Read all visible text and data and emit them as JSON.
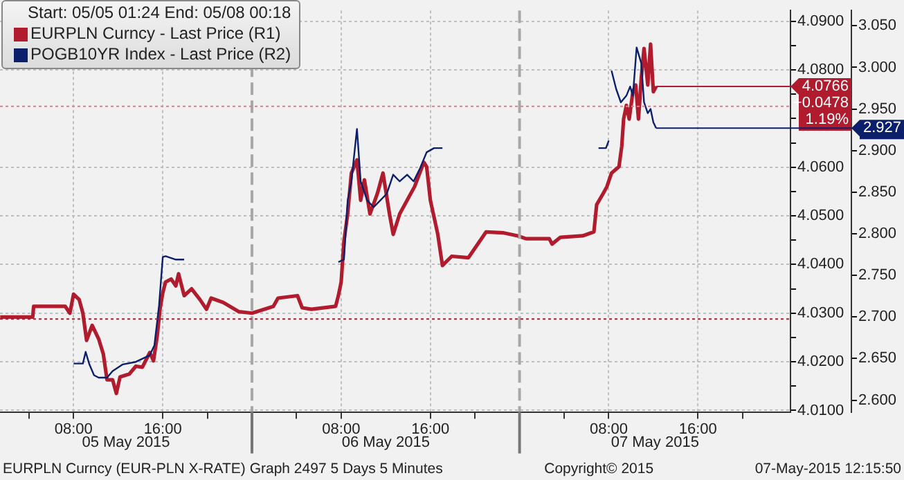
{
  "chart_data": {
    "type": "line",
    "legend_title": "Start: 05/05 01:24 End: 05/08 00:18",
    "legend": "top left",
    "grid": true,
    "marker": "none",
    "line_style": "solid",
    "series": [
      {
        "name": "EURPLN Curncy - Last Price (R1)",
        "color": "#b01c2e",
        "x": [
          "2015-05-05T01:25",
          "2015-05-05T04:20",
          "2015-05-05T04:25",
          "2015-05-05T07:15",
          "2015-05-05T07:40",
          "2015-05-05T08:00",
          "2015-05-05T08:30",
          "2015-05-05T08:50",
          "2015-05-05T09:10",
          "2015-05-05T09:40",
          "2015-05-05T10:15",
          "2015-05-05T10:40",
          "2015-05-05T11:00",
          "2015-05-05T11:30",
          "2015-05-05T11:50",
          "2015-05-05T12:10",
          "2015-05-05T13:00",
          "2015-05-05T13:35",
          "2015-05-05T14:10",
          "2015-05-05T14:50",
          "2015-05-05T15:10",
          "2015-05-05T15:30",
          "2015-05-05T15:45",
          "2015-05-05T16:00",
          "2015-05-05T16:15",
          "2015-05-05T16:45",
          "2015-05-05T17:10",
          "2015-05-05T17:25",
          "2015-05-05T17:55",
          "2015-05-05T18:35",
          "2015-05-05T19:20",
          "2015-05-05T19:55",
          "2015-05-05T20:20",
          "2015-05-05T21:25",
          "2015-05-05T22:50",
          "2015-05-06T00:00",
          "2015-05-06T01:05",
          "2015-05-06T01:55",
          "2015-05-06T02:20",
          "2015-05-06T04:05",
          "2015-05-06T04:30",
          "2015-05-06T05:20",
          "2015-05-06T07:30",
          "2015-05-06T07:45",
          "2015-05-06T08:00",
          "2015-05-06T08:15",
          "2015-05-06T08:35",
          "2015-05-06T08:55",
          "2015-05-06T09:25",
          "2015-05-06T09:45",
          "2015-05-06T10:05",
          "2015-05-06T10:35",
          "2015-05-06T11:15",
          "2015-05-06T11:45",
          "2015-05-06T12:20",
          "2015-05-06T12:40",
          "2015-05-06T13:15",
          "2015-05-06T13:55",
          "2015-05-06T14:35",
          "2015-05-06T15:25",
          "2015-05-06T15:40",
          "2015-05-06T16:00",
          "2015-05-06T16:40",
          "2015-05-06T17:05",
          "2015-05-06T17:55",
          "2015-05-06T19:25",
          "2015-05-06T21:00",
          "2015-05-06T22:35",
          "2015-05-06T23:50",
          "2015-05-07T00:35",
          "2015-05-07T02:40",
          "2015-05-07T02:55",
          "2015-05-07T03:40",
          "2015-05-07T05:40",
          "2015-05-07T06:40",
          "2015-05-07T06:55",
          "2015-05-07T07:30",
          "2015-05-07T07:50",
          "2015-05-07T08:15",
          "2015-05-07T08:55",
          "2015-05-07T09:10",
          "2015-05-07T09:20",
          "2015-05-07T09:35",
          "2015-05-07T09:50",
          "2015-05-07T10:10",
          "2015-05-07T10:25",
          "2015-05-07T10:40",
          "2015-05-07T10:55",
          "2015-05-07T11:10",
          "2015-05-07T11:30",
          "2015-05-07T11:45",
          "2015-05-07T12:00",
          "2015-05-07T12:15"
        ],
        "values": [
          4.0292,
          4.0292,
          4.0314,
          4.0314,
          4.03,
          4.0339,
          4.0328,
          4.03,
          4.0244,
          4.0275,
          4.0247,
          4.0216,
          4.0163,
          4.0163,
          4.0135,
          4.0169,
          4.0175,
          4.0191,
          4.0189,
          4.0219,
          4.0202,
          4.0253,
          4.0308,
          4.0342,
          4.0364,
          4.037,
          4.0356,
          4.0381,
          4.0336,
          4.035,
          4.0328,
          4.0308,
          4.0331,
          4.0322,
          4.0303,
          4.03,
          4.0308,
          4.0314,
          4.0331,
          4.0336,
          4.0311,
          4.0308,
          4.0314,
          4.0336,
          4.0364,
          4.0448,
          4.0504,
          4.0588,
          4.0615,
          4.0532,
          4.0574,
          4.0504,
          4.0546,
          4.0588,
          4.0504,
          4.0462,
          4.0504,
          4.0532,
          4.056,
          4.061,
          4.0601,
          4.0532,
          4.0462,
          4.0398,
          4.0417,
          4.0414,
          4.0467,
          4.0465,
          4.0459,
          4.0453,
          4.0453,
          4.0442,
          4.0456,
          4.0459,
          4.0467,
          4.0523,
          4.0546,
          4.056,
          4.0588,
          4.0601,
          4.0643,
          4.0699,
          4.0727,
          4.0699,
          4.0755,
          4.0769,
          4.0699,
          4.0783,
          4.0844,
          4.0769,
          4.0853,
          4.0755,
          4.0766
        ]
      },
      {
        "name": "POGB10YR Index - Last Price (R2)",
        "color": "#0b1f6b",
        "axis": "y2",
        "x": [
          "2015-05-05T08:00",
          "2015-05-05T08:50",
          "2015-05-05T09:05",
          "2015-05-05T09:25",
          "2015-05-05T09:50",
          "2015-05-05T10:15",
          "2015-05-05T11:00",
          "2015-05-05T11:30",
          "2015-05-05T12:25",
          "2015-05-05T13:35",
          "2015-05-05T14:50",
          "2015-05-05T15:15",
          "2015-05-05T15:40",
          "2015-05-05T16:00",
          "2015-05-05T16:15",
          "2015-05-05T17:10",
          "2015-05-05T17:55",
          "2015-05-06T00:00",
          "2015-05-06T07:45",
          "2015-05-06T08:15",
          "2015-05-06T08:35",
          "2015-05-06T08:55",
          "2015-05-06T09:25",
          "2015-05-06T09:45",
          "2015-05-06T10:20",
          "2015-05-06T10:55",
          "2015-05-06T11:30",
          "2015-05-06T12:05",
          "2015-05-06T12:40",
          "2015-05-06T13:15",
          "2015-05-06T13:55",
          "2015-05-06T14:30",
          "2015-05-06T15:05",
          "2015-05-06T15:40",
          "2015-05-06T16:20",
          "2015-05-06T17:05",
          "2015-05-07T00:00",
          "2015-05-07T07:05",
          "2015-05-07T07:45",
          "2015-05-07T08:00",
          "2015-05-07T08:05",
          "2015-05-07T08:15",
          "2015-05-07T08:40",
          "2015-05-07T09:05",
          "2015-05-07T09:35",
          "2015-05-07T09:55",
          "2015-05-07T10:10",
          "2015-05-07T10:30",
          "2015-05-07T10:55",
          "2015-05-07T11:10",
          "2015-05-07T11:30",
          "2015-05-07T11:45",
          "2015-05-07T12:00",
          "2015-05-07T12:15"
        ],
        "values": [
          2.644,
          2.644,
          2.658,
          2.643,
          2.63,
          2.627,
          2.627,
          2.635,
          2.643,
          2.646,
          2.654,
          2.666,
          2.714,
          2.772,
          2.773,
          2.769,
          2.769,
          null,
          2.766,
          2.769,
          2.84,
          2.863,
          2.926,
          2.863,
          2.84,
          2.832,
          2.84,
          2.848,
          2.871,
          2.863,
          2.871,
          2.863,
          2.879,
          2.898,
          2.903,
          2.903,
          null,
          2.903,
          2.903,
          2.912,
          null,
          2.996,
          2.974,
          2.958,
          2.966,
          2.977,
          2.966,
          3.024,
          3.005,
          2.958,
          2.945,
          2.95,
          2.934,
          2.927
        ]
      }
    ],
    "xlim": [
      "2015-05-05T01:24",
      "2015-05-08T00:18"
    ],
    "xticks": [
      {
        "value": "2015-05-05T04:00",
        "label": null
      },
      {
        "value": "2015-05-05T08:00",
        "label": "08:00"
      },
      {
        "value": "2015-05-05T16:00",
        "label": "16:00"
      },
      {
        "value": "2015-05-05T20:00",
        "label": null
      },
      {
        "value": "2015-05-06T04:00",
        "label": null
      },
      {
        "value": "2015-05-06T08:00",
        "label": "08:00"
      },
      {
        "value": "2015-05-06T16:00",
        "label": "16:00"
      },
      {
        "value": "2015-05-06T20:00",
        "label": null
      },
      {
        "value": "2015-05-07T04:00",
        "label": null
      },
      {
        "value": "2015-05-07T08:00",
        "label": "08:00"
      },
      {
        "value": "2015-05-07T16:00",
        "label": "16:00"
      },
      {
        "value": "2015-05-07T20:00",
        "label": null
      }
    ],
    "ylim": [
      4.0097,
      4.0922
    ],
    "yticks": [
      {
        "value": 4.01,
        "label": "4.0100"
      },
      {
        "value": 4.015,
        "label": null
      },
      {
        "value": 4.02,
        "label": "4.0200"
      },
      {
        "value": 4.025,
        "label": null
      },
      {
        "value": 4.03,
        "label": "4.0300"
      },
      {
        "value": 4.035,
        "label": null
      },
      {
        "value": 4.04,
        "label": "4.0400"
      },
      {
        "value": 4.045,
        "label": null
      },
      {
        "value": 4.05,
        "label": "4.0500"
      },
      {
        "value": 4.055,
        "label": null
      },
      {
        "value": 4.06,
        "label": "4.0600"
      },
      {
        "value": 4.065,
        "label": null
      },
      {
        "value": 4.07,
        "label": null
      },
      {
        "value": 4.075,
        "label": null
      },
      {
        "value": 4.08,
        "label": "4.0800"
      },
      {
        "value": 4.085,
        "label": null
      },
      {
        "value": 4.09,
        "label": "4.0900"
      }
    ],
    "y2lim": [
      2.5858,
      3.0684
    ],
    "y2ticks": [
      {
        "value": 2.6,
        "label": "2.600"
      },
      {
        "value": 2.65,
        "label": "2.650"
      },
      {
        "value": 2.7,
        "label": "2.700"
      },
      {
        "value": 2.75,
        "label": "2.750"
      },
      {
        "value": 2.8,
        "label": "2.800"
      },
      {
        "value": 2.85,
        "label": "2.850"
      },
      {
        "value": 2.9,
        "label": "2.900"
      },
      {
        "value": 2.95,
        "label": "2.950"
      },
      {
        "value": 3.0,
        "label": "3.000"
      },
      {
        "value": 3.05,
        "label": "3.050"
      }
    ],
    "ref_lines": [
      {
        "axis": "x",
        "value": "2015-05-06T00:00",
        "label": null,
        "color": "#a8a8a8",
        "line_style": "dashed"
      },
      {
        "axis": "x",
        "value": "2015-05-07T00:00",
        "label": null,
        "color": "#a8a8a8",
        "line_style": "dashed"
      },
      {
        "axis": "y",
        "value": 4.0288,
        "label": null,
        "color": "#b01c2e",
        "line_style": "dotted"
      },
      {
        "axis": "y",
        "value": 4.0725,
        "label": null,
        "color": "#d9828c",
        "line_style": "dotted"
      },
      {
        "axis": "y",
        "value": 4.0766,
        "label": "4.0766\n+0.0478\n1.19%",
        "color": "#b01c2e",
        "line_style": "solid"
      },
      {
        "axis": "y2",
        "value": 2.927,
        "label": "2.927",
        "color": "#0b1f6b",
        "line_style": "solid"
      }
    ],
    "annotations": [
      "05 May 2015",
      "06 May 2015",
      "07 May 2015",
      "EURPLN Curncy (EUR-PLN X-RATE) Graph 2497 5 Days 5 Minutes",
      "Copyright© 2015",
      "07-May-2015 12:15:50"
    ]
  }
}
